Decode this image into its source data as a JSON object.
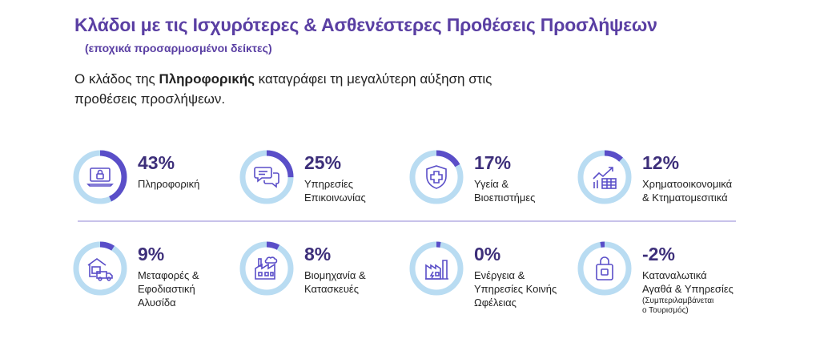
{
  "header": {
    "title": "Κλάδοι με τις Ισχυρότερες & Ασθενέστερες Προθέσεις Προσλήψεων",
    "subtitle": "(εποχικά προσαρμοσμένοι δείκτες)",
    "lead_before": "Ο κλάδος της ",
    "lead_bold": "Πληροφορικής",
    "lead_after": " καταγράφει τη μεγαλύτερη αύξηση στις προθέσεις προσλήψεων."
  },
  "colors": {
    "accent": "#5a3fa3",
    "ring_track": "#b9dcf2",
    "ring_fill": "#5a4ec8",
    "icon": "#5a4ec8"
  },
  "sectors": [
    {
      "value": 43,
      "pct": "43%",
      "line1": "Πληροφορική",
      "line2": "",
      "line3": "",
      "note1": "",
      "note2": "",
      "icon": "laptop-lock-icon"
    },
    {
      "value": 25,
      "pct": "25%",
      "line1": "Υπηρεσίες",
      "line2": "Επικοινωνίας",
      "line3": "",
      "note1": "",
      "note2": "",
      "icon": "chat-bubbles-icon"
    },
    {
      "value": 17,
      "pct": "17%",
      "line1": "Υγεία &",
      "line2": "Βιοεπιστήμες",
      "line3": "",
      "note1": "",
      "note2": "",
      "icon": "shield-cross-icon"
    },
    {
      "value": 12,
      "pct": "12%",
      "line1": "Χρηματοοικονομικά",
      "line2": "& Κτηματομεσιτικά",
      "line3": "",
      "note1": "",
      "note2": "",
      "icon": "bar-chart-icon"
    },
    {
      "value": 9,
      "pct": "9%",
      "line1": "Μεταφορές &",
      "line2": "Εφοδιαστική",
      "line3": "Αλυσίδα",
      "note1": "",
      "note2": "",
      "icon": "warehouse-truck-icon"
    },
    {
      "value": 8,
      "pct": "8%",
      "line1": "Βιομηχανία &",
      "line2": "Κατασκευές",
      "line3": "",
      "note1": "",
      "note2": "",
      "icon": "factory-icon"
    },
    {
      "value": 0,
      "pct": "0%",
      "line1": "Ενέργεια &",
      "line2": "Υπηρεσίες Κοινής",
      "line3": "Ωφέλειας",
      "note1": "",
      "note2": "",
      "icon": "energy-plant-icon"
    },
    {
      "value": -2,
      "pct": "-2%",
      "line1": "Καταναλωτικά",
      "line2": "Αγαθά & Υπηρεσίες",
      "line3": "",
      "note1": "(Συμπεριλαμβάνεται",
      "note2": "ο Τουρισμός)",
      "icon": "shopping-bag-icon"
    }
  ]
}
